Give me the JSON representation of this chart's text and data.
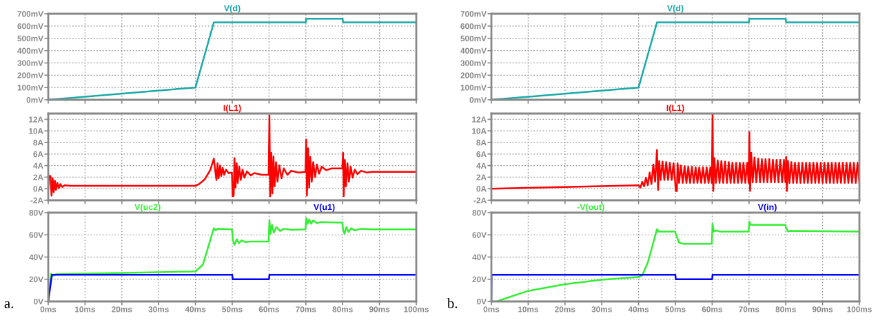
{
  "chart_data": [
    {
      "type": "line",
      "xlim": [
        0,
        100
      ],
      "xticks": [
        0,
        10,
        20,
        30,
        40,
        50,
        60,
        70,
        80,
        90,
        100
      ],
      "ylim": [
        0,
        700
      ],
      "yticks": [
        {
          "value": 0,
          "label": "0mV"
        },
        {
          "value": 100,
          "label": "100mV"
        },
        {
          "value": 200,
          "label": "200mV"
        },
        {
          "value": 300,
          "label": "300mV"
        },
        {
          "value": 400,
          "label": "400mV"
        },
        {
          "value": 500,
          "label": "500mV"
        },
        {
          "value": 600,
          "label": "600mV"
        },
        {
          "value": 700,
          "label": "700mV"
        }
      ],
      "tick_labels": "y",
      "grid": true,
      "legend": false,
      "series": [
        {
          "name": "V(d)",
          "color": "#1aa8a8",
          "x": [
            0,
            40,
            45,
            70,
            70.1,
            80,
            80.1,
            100
          ],
          "values": [
            0,
            100,
            630,
            630,
            660,
            660,
            630,
            630
          ]
        }
      ]
    },
    {
      "type": "line",
      "xlim": [
        0,
        100
      ],
      "xticks": [
        0,
        10,
        20,
        30,
        40,
        50,
        60,
        70,
        80,
        90,
        100
      ],
      "ylim": [
        -2,
        13
      ],
      "yticks": [
        {
          "value": -2,
          "label": "-2A"
        },
        {
          "value": 0,
          "label": "0A"
        },
        {
          "value": 2,
          "label": "2A"
        },
        {
          "value": 4,
          "label": "4A"
        },
        {
          "value": 6,
          "label": "6A"
        },
        {
          "value": 8,
          "label": "8A"
        },
        {
          "value": 10,
          "label": "10A"
        },
        {
          "value": 12,
          "label": "12A"
        }
      ],
      "tick_labels": "y",
      "grid": true,
      "legend": false,
      "series": [
        {
          "name": "I(L1)",
          "color": "#ff0000",
          "x": [
            0,
            0.2,
            0.6,
            0.9,
            1.2,
            1.5,
            1.8,
            2.1,
            2.5,
            2.9,
            3.3,
            3.8,
            4.5,
            6,
            40,
            41,
            42.5,
            44,
            45,
            45.4,
            45.7,
            46,
            46.3,
            46.7,
            47,
            47.4,
            47.8,
            48.3,
            49,
            49.9,
            50.1,
            50.4,
            50.6,
            50.9,
            51.2,
            51.5,
            51.9,
            52.3,
            52.8,
            53.3,
            54,
            55,
            56,
            58,
            59.9,
            60.1,
            60.3,
            60.6,
            60.9,
            61.2,
            61.5,
            61.9,
            62.3,
            62.8,
            63.4,
            64,
            65,
            66,
            68,
            69.9,
            70.1,
            70.3,
            70.6,
            70.9,
            71.2,
            71.6,
            72,
            72.5,
            73,
            73.6,
            74.3,
            75.5,
            77,
            79.9,
            80.1,
            80.3,
            80.6,
            80.9,
            81.3,
            81.7,
            82.2,
            82.7,
            83.3,
            84,
            85,
            86.5,
            88,
            100
          ],
          "values": [
            0,
            2.2,
            2.2,
            -1.2,
            1.8,
            -0.6,
            1.4,
            -0.2,
            1.0,
            0.1,
            0.8,
            0.3,
            0.6,
            0.5,
            0.5,
            0.8,
            1.6,
            3.2,
            5.2,
            3.0,
            1.5,
            4.4,
            1.8,
            4.0,
            2.2,
            3.6,
            2.4,
            3.3,
            2.7,
            2.8,
            -1.3,
            -1.2,
            5.3,
            0.2,
            4.4,
            1.0,
            3.8,
            1.5,
            3.3,
            1.9,
            3.0,
            2.3,
            2.7,
            2.4,
            2.4,
            12.7,
            -1.3,
            6.2,
            -0.8,
            5.6,
            0.4,
            4.6,
            1.2,
            4.0,
            1.8,
            3.5,
            2.4,
            3.1,
            2.8,
            2.9,
            8.5,
            -1.2,
            7.0,
            0.2,
            5.5,
            1.2,
            4.6,
            2.0,
            4.2,
            2.6,
            3.8,
            3.2,
            3.5,
            3.5,
            6.2,
            -1.3,
            5.0,
            0.4,
            4.4,
            1.2,
            3.8,
            1.9,
            3.3,
            2.5,
            3.1,
            2.8,
            2.9,
            2.9
          ]
        }
      ]
    },
    {
      "type": "line",
      "xlim": [
        0,
        100
      ],
      "xticks": [
        {
          "value": 0,
          "label": "0ms"
        },
        {
          "value": 10,
          "label": "10ms"
        },
        {
          "value": 20,
          "label": "20ms"
        },
        {
          "value": 30,
          "label": "30ms"
        },
        {
          "value": 40,
          "label": "40ms"
        },
        {
          "value": 50,
          "label": "50ms"
        },
        {
          "value": 60,
          "label": "60ms"
        },
        {
          "value": 70,
          "label": "70ms"
        },
        {
          "value": 80,
          "label": "80ms"
        },
        {
          "value": 90,
          "label": "90ms"
        },
        {
          "value": 100,
          "label": "100ms"
        }
      ],
      "ylim": [
        0,
        80
      ],
      "yticks": [
        {
          "value": 0,
          "label": "0V"
        },
        {
          "value": 20,
          "label": "20V"
        },
        {
          "value": 40,
          "label": "40V"
        },
        {
          "value": 60,
          "label": "60V"
        },
        {
          "value": 80,
          "label": "80V"
        }
      ],
      "grid": true,
      "legend": false,
      "annotations": [
        "a."
      ],
      "series": [
        {
          "name": "V(uc2)",
          "color": "#33ee33",
          "x": [
            0,
            0.8,
            1.2,
            2,
            40,
            42,
            44,
            45,
            45.5,
            46,
            49.9,
            50.2,
            50.6,
            51.2,
            51.8,
            52.5,
            53.5,
            55,
            59.9,
            60.1,
            60.4,
            60.8,
            61.3,
            62,
            63,
            64,
            66,
            69.9,
            70.1,
            70.5,
            70.9,
            71.4,
            72,
            73,
            74,
            79.9,
            80.1,
            80.5,
            81,
            81.6,
            82.3,
            83.2,
            85,
            88,
            100
          ],
          "values": [
            0,
            25,
            23,
            24.5,
            27,
            33,
            55,
            66,
            64,
            65.5,
            65,
            55,
            51,
            56,
            52.5,
            55,
            53.5,
            54,
            54,
            73,
            61,
            69,
            62,
            67,
            63.5,
            65.5,
            64.5,
            65,
            75,
            70,
            74,
            70,
            73,
            70.5,
            71.5,
            71,
            65,
            61,
            67,
            62.5,
            66,
            64,
            65.5,
            65,
            65
          ]
        },
        {
          "name": "V(u1)",
          "color": "#0000ff",
          "x": [
            0,
            1,
            50,
            50.1,
            60,
            60.1,
            100
          ],
          "values": [
            0,
            24,
            24,
            20,
            20,
            24,
            24
          ]
        }
      ]
    },
    {
      "type": "line",
      "xlim": [
        0,
        100
      ],
      "xticks": [
        0,
        10,
        20,
        30,
        40,
        50,
        60,
        70,
        80,
        90,
        100
      ],
      "ylim": [
        0,
        700
      ],
      "yticks": [
        {
          "value": 0,
          "label": "0mV"
        },
        {
          "value": 100,
          "label": "100mV"
        },
        {
          "value": 200,
          "label": "200mV"
        },
        {
          "value": 300,
          "label": "300mV"
        },
        {
          "value": 400,
          "label": "400mV"
        },
        {
          "value": 500,
          "label": "500mV"
        },
        {
          "value": 600,
          "label": "600mV"
        },
        {
          "value": 700,
          "label": "700mV"
        }
      ],
      "tick_labels": "y",
      "grid": true,
      "legend": false,
      "series": [
        {
          "name": "V(d)",
          "color": "#1aa8a8",
          "x": [
            0,
            40,
            45,
            70,
            70.1,
            80,
            80.1,
            100
          ],
          "values": [
            0,
            100,
            630,
            630,
            660,
            660,
            630,
            630
          ]
        }
      ]
    },
    {
      "type": "line",
      "xlim": [
        0,
        100
      ],
      "xticks": [
        0,
        10,
        20,
        30,
        40,
        50,
        60,
        70,
        80,
        90,
        100
      ],
      "ylim": [
        -2,
        13
      ],
      "yticks": [
        {
          "value": -2,
          "label": "-2A"
        },
        {
          "value": 0,
          "label": "0A"
        },
        {
          "value": 2,
          "label": "2A"
        },
        {
          "value": 4,
          "label": "4A"
        },
        {
          "value": 6,
          "label": "6A"
        },
        {
          "value": 8,
          "label": "8A"
        },
        {
          "value": 10,
          "label": "10A"
        },
        {
          "value": 12,
          "label": "12A"
        }
      ],
      "tick_labels": "y",
      "grid": true,
      "legend": false,
      "series": [
        {
          "name": "I(L1)",
          "color": "#ff0000",
          "x": [
            0,
            20,
            40,
            40.5,
            41,
            41.5,
            42,
            42.5,
            43,
            43.5,
            44,
            44.5,
            45,
            45.3,
            45.6,
            46,
            46.5,
            47,
            47.5,
            48,
            48.5,
            49,
            49.5,
            49.9,
            50.1,
            50.4,
            50.6,
            51,
            51.5,
            52,
            52.5,
            53,
            53.5,
            54,
            54.5,
            55,
            55.5,
            56,
            56.5,
            57,
            57.5,
            58,
            58.5,
            59,
            59.5,
            59.9,
            60.1,
            60.3,
            60.6,
            61,
            61.5,
            62,
            62.5,
            63,
            63.5,
            64,
            64.5,
            65,
            65.5,
            66,
            66.5,
            67,
            67.5,
            68,
            68.5,
            69,
            69.5,
            69.9,
            70.1,
            70.3,
            70.6,
            71,
            71.5,
            72,
            72.5,
            73,
            73.5,
            74,
            74.5,
            75,
            75.5,
            76,
            76.5,
            77,
            77.5,
            78,
            78.5,
            79,
            79.5,
            79.9,
            80.1,
            80.3,
            80.6,
            81,
            81.5,
            82,
            82.5,
            83,
            83.5,
            84,
            84.5,
            85,
            85.5,
            86,
            86.5,
            87,
            87.5,
            88,
            88.5,
            89,
            89.5,
            90,
            90.5,
            91,
            91.5,
            92,
            92.5,
            93,
            93.5,
            94,
            94.5,
            95,
            95.5,
            96,
            96.5,
            97,
            97.5,
            98,
            98.5,
            99,
            99.5,
            100
          ],
          "values": [
            0,
            0.3,
            0.6,
            0.2,
            1.2,
            0.4,
            1.9,
            0.6,
            2.8,
            0.8,
            4.2,
            1.2,
            6.7,
            -0.2,
            4.8,
            1.5,
            4.7,
            1.5,
            4.6,
            1.5,
            4.5,
            1.5,
            4.4,
            1.5,
            -0.4,
            -0.4,
            4.4,
            1.0,
            4.0,
            1.0,
            3.9,
            1.0,
            3.8,
            1.0,
            3.8,
            1.0,
            3.7,
            1.0,
            3.7,
            1.0,
            3.7,
            1.0,
            3.7,
            1.0,
            3.7,
            1.0,
            13,
            -0.4,
            5.3,
            1.0,
            4.9,
            1.0,
            4.8,
            1.0,
            4.7,
            1.0,
            4.6,
            1.0,
            4.5,
            1.0,
            4.5,
            1.0,
            4.5,
            1.0,
            4.5,
            1.0,
            4.5,
            1.0,
            9.8,
            -0.4,
            6.2,
            1.1,
            5.4,
            1.1,
            5.2,
            1.1,
            5.1,
            1.1,
            5.1,
            1.1,
            5.1,
            1.1,
            5.0,
            1.1,
            5.0,
            1.1,
            5.0,
            1.1,
            5.0,
            1.1,
            5.5,
            -0.4,
            4.8,
            1.0,
            4.6,
            1.0,
            4.5,
            1.0,
            4.5,
            1.0,
            4.5,
            1.0,
            4.5,
            1.0,
            4.5,
            1.0,
            4.5,
            1.0,
            4.5,
            1.0,
            4.5,
            1.0,
            4.5,
            1.0,
            4.5,
            1.0,
            4.5,
            1.0,
            4.5,
            1.0,
            4.5,
            1.0,
            4.5,
            1.0,
            4.5,
            1.0,
            4.5,
            1.0,
            4.5,
            1.0,
            4.5,
            1.0
          ]
        }
      ]
    },
    {
      "type": "line",
      "xlim": [
        0,
        100
      ],
      "xticks": [
        {
          "value": 0,
          "label": "0ms"
        },
        {
          "value": 10,
          "label": "10ms"
        },
        {
          "value": 20,
          "label": "20ms"
        },
        {
          "value": 30,
          "label": "30ms"
        },
        {
          "value": 40,
          "label": "40ms"
        },
        {
          "value": 50,
          "label": "50ms"
        },
        {
          "value": 60,
          "label": "60ms"
        },
        {
          "value": 70,
          "label": "70ms"
        },
        {
          "value": 80,
          "label": "80ms"
        },
        {
          "value": 90,
          "label": "90ms"
        },
        {
          "value": 100,
          "label": "100ms"
        }
      ],
      "ylim": [
        0,
        80
      ],
      "yticks": [
        {
          "value": 0,
          "label": "0V"
        },
        {
          "value": 20,
          "label": "20V"
        },
        {
          "value": 40,
          "label": "40V"
        },
        {
          "value": 60,
          "label": "60V"
        },
        {
          "value": 80,
          "label": "80V"
        }
      ],
      "grid": true,
      "legend": false,
      "annotations": [
        "b."
      ],
      "series": [
        {
          "name": "-V(out)",
          "color": "#33ee33",
          "x": [
            0,
            1.5,
            5,
            10,
            20,
            30,
            40,
            41,
            42.5,
            44,
            45,
            45.5,
            49.9,
            50.2,
            51,
            52,
            59.9,
            60.1,
            60.4,
            61,
            62,
            69.9,
            70.1,
            70.5,
            79.9,
            80.1,
            80.6,
            81,
            100
          ],
          "values": [
            0,
            0,
            4,
            9.5,
            15.5,
            19.5,
            22,
            23.5,
            35,
            53,
            65,
            63,
            63,
            60,
            53,
            52,
            52,
            70,
            63,
            64,
            63,
            63,
            72,
            69,
            69,
            66,
            63,
            63.5,
            63
          ]
        },
        {
          "name": "V(in)",
          "color": "#0000ff",
          "x": [
            0,
            0.05,
            50,
            50.1,
            60,
            60.1,
            100
          ],
          "values": [
            0,
            24,
            24,
            20,
            20,
            24,
            24
          ]
        }
      ]
    }
  ]
}
